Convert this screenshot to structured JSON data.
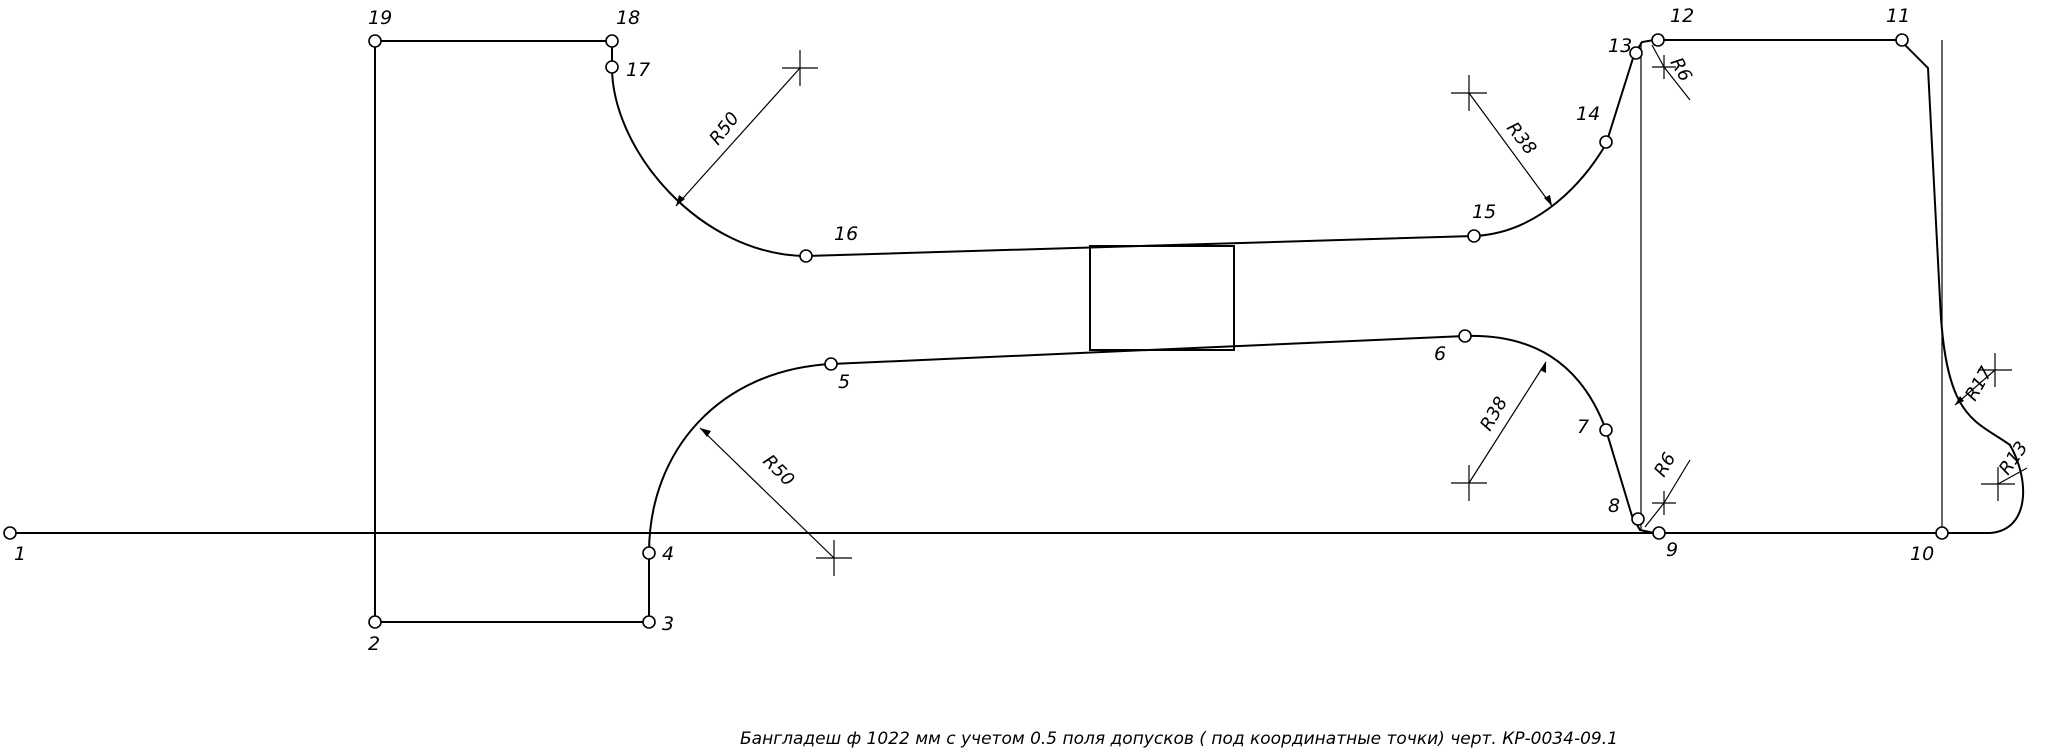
{
  "drawing": {
    "caption": "Бангладеш ф 1022 мм с учетом 0.5 поля допусков ( под координатные точки) черт. КР-0034-09.1",
    "point_labels": [
      "1",
      "2",
      "3",
      "4",
      "5",
      "6",
      "7",
      "8",
      "9",
      "10",
      "11",
      "12",
      "13",
      "14",
      "15",
      "16",
      "17",
      "18",
      "19"
    ],
    "dimensions": {
      "r50_top": "R50",
      "r50_bottom": "R50",
      "r38_top": "R38",
      "r38_bottom": "R38",
      "r6_top": "R6",
      "r6_bottom": "R6",
      "r17": "R17",
      "r13": "R13"
    }
  }
}
